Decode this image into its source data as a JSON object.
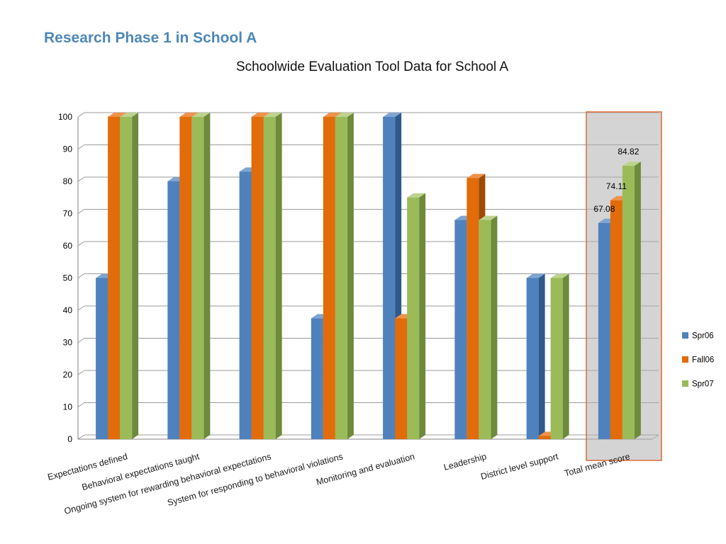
{
  "slide": {
    "title": "Research Phase 1 in School A"
  },
  "chart_data": {
    "type": "bar",
    "title": "Schoolwide Evaluation Tool Data for School A",
    "xlabel": "",
    "ylabel": "",
    "ylim": [
      0,
      100
    ],
    "y_ticks": [
      0,
      10,
      20,
      30,
      40,
      50,
      60,
      70,
      80,
      90,
      100
    ],
    "grid": true,
    "legend_position": "right",
    "categories": [
      "Expectations defined",
      "Behavioral expectations taught",
      "Ongoing system for rewarding behavioral expectations",
      "System for responding to behavioral violations",
      "Monitoring and evaluation",
      "Leadership",
      "District level support",
      "Total mean score"
    ],
    "series": [
      {
        "name": "Spr06",
        "color": "#4F81BD",
        "side_color": "#2E5A8B",
        "top_color": "#7FA5D1",
        "values": [
          50,
          80,
          83,
          37.5,
          100,
          68,
          50,
          67.08
        ]
      },
      {
        "name": "Fall06",
        "color": "#E26B0A",
        "side_color": "#9C4A06",
        "top_color": "#F0924A",
        "values": [
          100,
          100,
          100,
          100,
          37.5,
          81,
          1,
          74.11
        ]
      },
      {
        "name": "Spr07",
        "color": "#9BBB59",
        "side_color": "#6E8A3B",
        "top_color": "#BCD38E",
        "values": [
          100,
          100,
          100,
          100,
          75,
          68,
          50,
          84.82
        ]
      }
    ],
    "data_labels": {
      "category": "Total mean score",
      "values": [
        "67.08",
        "74.11",
        "84.82"
      ]
    },
    "highlight": {
      "category": "Total mean score",
      "fill": "#b0b0b0",
      "border": "#DD6B33"
    }
  }
}
